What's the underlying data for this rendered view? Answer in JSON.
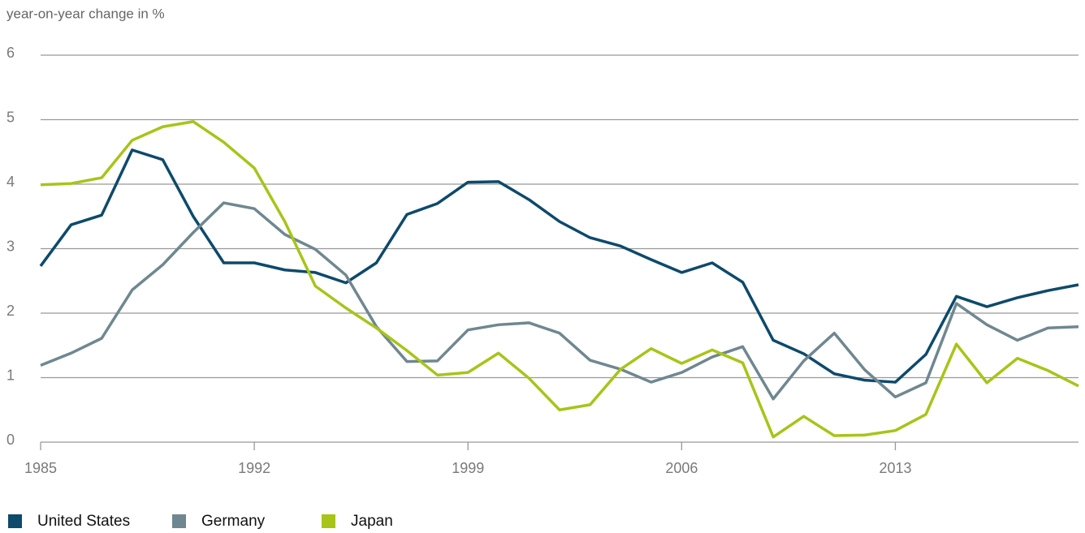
{
  "chart_data": {
    "type": "line",
    "y_label": "year-on-year change in %",
    "x": [
      1985,
      1986,
      1987,
      1988,
      1989,
      1990,
      1991,
      1992,
      1993,
      1994,
      1995,
      1996,
      1997,
      1998,
      1999,
      2000,
      2001,
      2002,
      2003,
      2004,
      2005,
      2006,
      2007,
      2008,
      2009,
      2010,
      2011,
      2012,
      2013,
      2014,
      2015,
      2016,
      2017,
      2018,
      2019
    ],
    "xlim": [
      1985,
      2019
    ],
    "xticks": [
      1985,
      1992,
      1999,
      2006,
      2013
    ],
    "ylim": [
      0,
      6
    ],
    "yticks": [
      0,
      1,
      2,
      3,
      4,
      5,
      6
    ],
    "grid": true,
    "legend": "bottom",
    "series": [
      {
        "name": "United States",
        "color": "#0d4a6b",
        "values": [
          2.73,
          3.37,
          3.52,
          4.53,
          4.38,
          3.5,
          2.78,
          2.78,
          2.67,
          2.63,
          2.47,
          2.78,
          3.53,
          3.7,
          4.03,
          4.04,
          3.76,
          3.42,
          3.17,
          3.04,
          2.83,
          2.63,
          2.78,
          2.48,
          1.58,
          1.37,
          1.06,
          0.96,
          0.93,
          1.36,
          2.26,
          2.1,
          2.24,
          2.35,
          2.44
        ]
      },
      {
        "name": "Germany",
        "color": "#6f8790",
        "values": [
          1.19,
          1.38,
          1.61,
          2.36,
          2.75,
          3.25,
          3.71,
          3.62,
          3.22,
          2.99,
          2.59,
          1.79,
          1.25,
          1.26,
          1.74,
          1.82,
          1.85,
          1.69,
          1.27,
          1.13,
          0.93,
          1.08,
          1.32,
          1.48,
          0.67,
          1.26,
          1.69,
          1.12,
          0.7,
          0.92,
          2.15,
          1.82,
          1.58,
          1.77,
          1.79
        ]
      },
      {
        "name": "Japan",
        "color": "#a8c418",
        "values": [
          3.99,
          4.01,
          4.1,
          4.68,
          4.89,
          4.97,
          4.65,
          4.25,
          3.42,
          2.42,
          2.08,
          1.77,
          1.42,
          1.04,
          1.08,
          1.38,
          0.99,
          0.5,
          0.58,
          1.13,
          1.45,
          1.22,
          1.43,
          1.23,
          0.08,
          0.4,
          0.1,
          0.11,
          0.18,
          0.43,
          1.52,
          0.92,
          1.3,
          1.11,
          0.87
        ]
      }
    ]
  }
}
